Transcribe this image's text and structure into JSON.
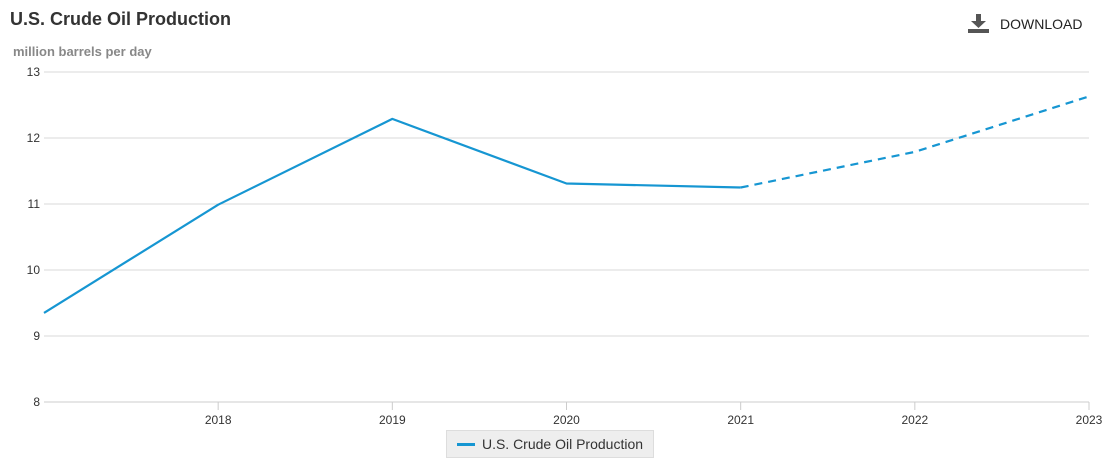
{
  "header": {
    "title": "U.S. Crude Oil Production",
    "unit_label": "million barrels per day",
    "download_label": "DOWNLOAD"
  },
  "chart_data": {
    "type": "line",
    "title": "U.S. Crude Oil Production",
    "ylabel": "million barrels per day",
    "xlabel": "",
    "x": [
      2017,
      2018,
      2019,
      2020,
      2021,
      2022,
      2023
    ],
    "x_range": [
      2017,
      2023
    ],
    "x_ticks": [
      "2018",
      "2019",
      "2020",
      "2021",
      "2022",
      "2023"
    ],
    "ylim": [
      8,
      13
    ],
    "y_ticks": [
      "8",
      "9",
      "10",
      "11",
      "12",
      "13"
    ],
    "grid": true,
    "series": [
      {
        "name": "U.S. Crude Oil Production",
        "color": "#1696d2",
        "values": [
          9.35,
          10.99,
          12.29,
          11.31,
          11.25,
          11.79,
          12.63
        ],
        "projected_from": 2021
      }
    ],
    "legend": {
      "position": "bottom-center",
      "entries": [
        "U.S. Crude Oil Production"
      ]
    }
  }
}
